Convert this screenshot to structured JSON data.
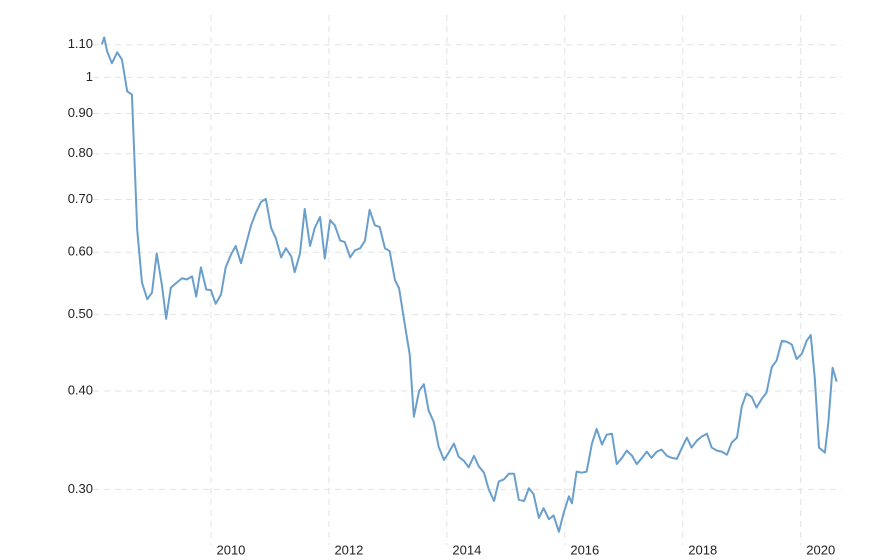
{
  "chart_data": {
    "type": "line",
    "log_y": true,
    "grid": true,
    "color": "#6a9fcc",
    "xlim": [
      2008,
      2020.7
    ],
    "xticks": [
      2010,
      2012,
      2014,
      2016,
      2018,
      2020
    ],
    "ylim": [
      0.255,
      1.2
    ],
    "yticks": [
      {
        "value": 0.3,
        "label": "0.30"
      },
      {
        "value": 0.4,
        "label": "0.40"
      },
      {
        "value": 0.5,
        "label": "0.50"
      },
      {
        "value": 0.6,
        "label": "0.60"
      },
      {
        "value": 0.7,
        "label": "0.70"
      },
      {
        "value": 0.8,
        "label": "0.80"
      },
      {
        "value": 0.9,
        "label": "0.90"
      },
      1,
      {
        "value": 1.1,
        "label": "1.10"
      }
    ],
    "x": [
      2008.15,
      2008.19,
      2008.24,
      2008.32,
      2008.41,
      2008.49,
      2008.58,
      2008.66,
      2008.75,
      2008.83,
      2008.92,
      2009.0,
      2009.08,
      2009.17,
      2009.24,
      2009.32,
      2009.42,
      2009.51,
      2009.59,
      2009.68,
      2009.75,
      2009.83,
      2009.92,
      2010.0,
      2010.08,
      2010.17,
      2010.25,
      2010.34,
      2010.42,
      2010.51,
      2010.59,
      2010.68,
      2010.76,
      2010.85,
      2010.93,
      2011.02,
      2011.1,
      2011.19,
      2011.27,
      2011.36,
      2011.42,
      2011.51,
      2011.59,
      2011.68,
      2011.76,
      2011.85,
      2011.93,
      2012.02,
      2012.1,
      2012.19,
      2012.27,
      2012.36,
      2012.44,
      2012.53,
      2012.61,
      2012.69,
      2012.78,
      2012.86,
      2012.95,
      2013.03,
      2013.12,
      2013.19,
      2013.29,
      2013.37,
      2013.44,
      2013.53,
      2013.61,
      2013.69,
      2013.78,
      2013.86,
      2013.95,
      2014.03,
      2014.12,
      2014.2,
      2014.29,
      2014.37,
      2014.46,
      2014.54,
      2014.63,
      2014.71,
      2014.8,
      2014.88,
      2014.97,
      2015.05,
      2015.14,
      2015.22,
      2015.31,
      2015.39,
      2015.47,
      2015.56,
      2015.64,
      2015.73,
      2015.81,
      2015.9,
      2015.98,
      2016.07,
      2016.12,
      2016.2,
      2016.29,
      2016.37,
      2016.46,
      2016.54,
      2016.63,
      2016.71,
      2016.8,
      2016.88,
      2016.97,
      2017.05,
      2017.14,
      2017.22,
      2017.31,
      2017.39,
      2017.47,
      2017.56,
      2017.64,
      2017.73,
      2017.81,
      2017.9,
      2017.98,
      2018.07,
      2018.15,
      2018.24,
      2018.32,
      2018.41,
      2018.49,
      2018.58,
      2018.66,
      2018.75,
      2018.83,
      2018.92,
      2019.0,
      2019.08,
      2019.17,
      2019.25,
      2019.34,
      2019.42,
      2019.51,
      2019.59,
      2019.68,
      2019.76,
      2019.85,
      2019.93,
      2020.02,
      2020.1,
      2020.17,
      2020.24,
      2020.31,
      2020.41,
      2020.47,
      2020.54,
      2020.61
    ],
    "values": [
      1.101,
      1.124,
      1.079,
      1.042,
      1.076,
      1.054,
      0.96,
      0.951,
      0.64,
      0.549,
      0.523,
      0.533,
      0.598,
      0.544,
      0.494,
      0.541,
      0.549,
      0.556,
      0.554,
      0.559,
      0.527,
      0.574,
      0.538,
      0.537,
      0.516,
      0.53,
      0.574,
      0.596,
      0.611,
      0.581,
      0.612,
      0.649,
      0.673,
      0.695,
      0.701,
      0.644,
      0.625,
      0.591,
      0.607,
      0.593,
      0.566,
      0.598,
      0.681,
      0.611,
      0.644,
      0.665,
      0.589,
      0.659,
      0.649,
      0.621,
      0.618,
      0.591,
      0.603,
      0.607,
      0.62,
      0.679,
      0.649,
      0.646,
      0.607,
      0.602,
      0.553,
      0.54,
      0.484,
      0.445,
      0.371,
      0.4,
      0.408,
      0.378,
      0.365,
      0.34,
      0.327,
      0.334,
      0.343,
      0.33,
      0.326,
      0.32,
      0.331,
      0.321,
      0.315,
      0.3,
      0.29,
      0.307,
      0.309,
      0.314,
      0.314,
      0.291,
      0.29,
      0.301,
      0.296,
      0.276,
      0.284,
      0.275,
      0.278,
      0.265,
      0.28,
      0.294,
      0.288,
      0.316,
      0.315,
      0.316,
      0.343,
      0.358,
      0.342,
      0.352,
      0.353,
      0.323,
      0.329,
      0.336,
      0.331,
      0.323,
      0.329,
      0.335,
      0.329,
      0.335,
      0.337,
      0.331,
      0.329,
      0.328,
      0.338,
      0.349,
      0.339,
      0.346,
      0.35,
      0.353,
      0.339,
      0.336,
      0.335,
      0.332,
      0.344,
      0.349,
      0.382,
      0.397,
      0.393,
      0.381,
      0.391,
      0.398,
      0.429,
      0.437,
      0.463,
      0.462,
      0.458,
      0.439,
      0.446,
      0.463,
      0.471,
      0.414,
      0.339,
      0.334,
      0.366,
      0.428,
      0.411
    ]
  }
}
